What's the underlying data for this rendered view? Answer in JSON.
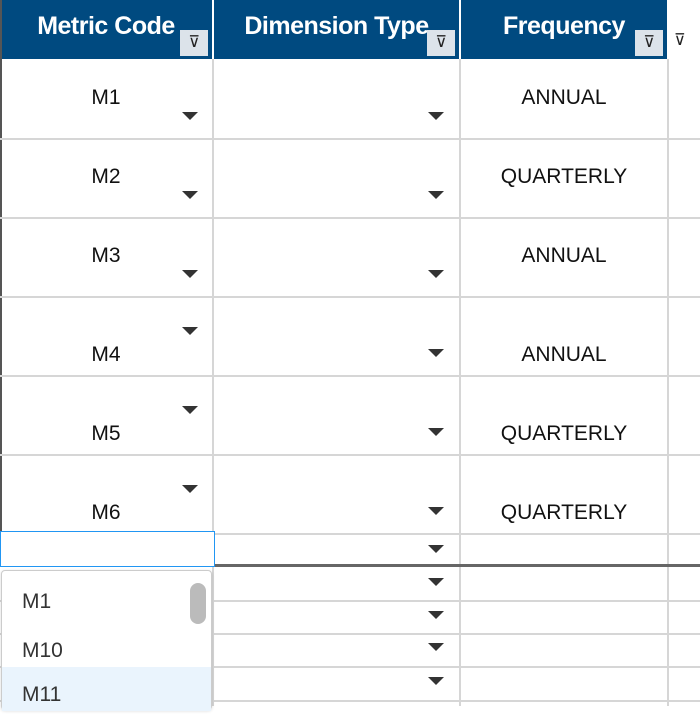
{
  "columns": [
    {
      "label": "Metric Code"
    },
    {
      "label": "Dimension Type"
    },
    {
      "label": "Frequency"
    }
  ],
  "rows": [
    {
      "metric": "M1",
      "dimension": "",
      "frequency": "ANNUAL"
    },
    {
      "metric": "M2",
      "dimension": "",
      "frequency": "QUARTERLY"
    },
    {
      "metric": "M3",
      "dimension": "",
      "frequency": "ANNUAL"
    },
    {
      "metric": "M4",
      "dimension": "",
      "frequency": "ANNUAL"
    },
    {
      "metric": "M5",
      "dimension": "",
      "frequency": "QUARTERLY"
    },
    {
      "metric": "M6",
      "dimension": "",
      "frequency": "QUARTERLY"
    }
  ],
  "edit_input": {
    "value": ""
  },
  "dropdown": {
    "options": [
      "M1",
      "M10",
      "M11"
    ],
    "highlighted": "M11"
  },
  "colors": {
    "header_bg": "#004a80",
    "highlight": "#eaf4fd",
    "focus": "#2196f3"
  }
}
